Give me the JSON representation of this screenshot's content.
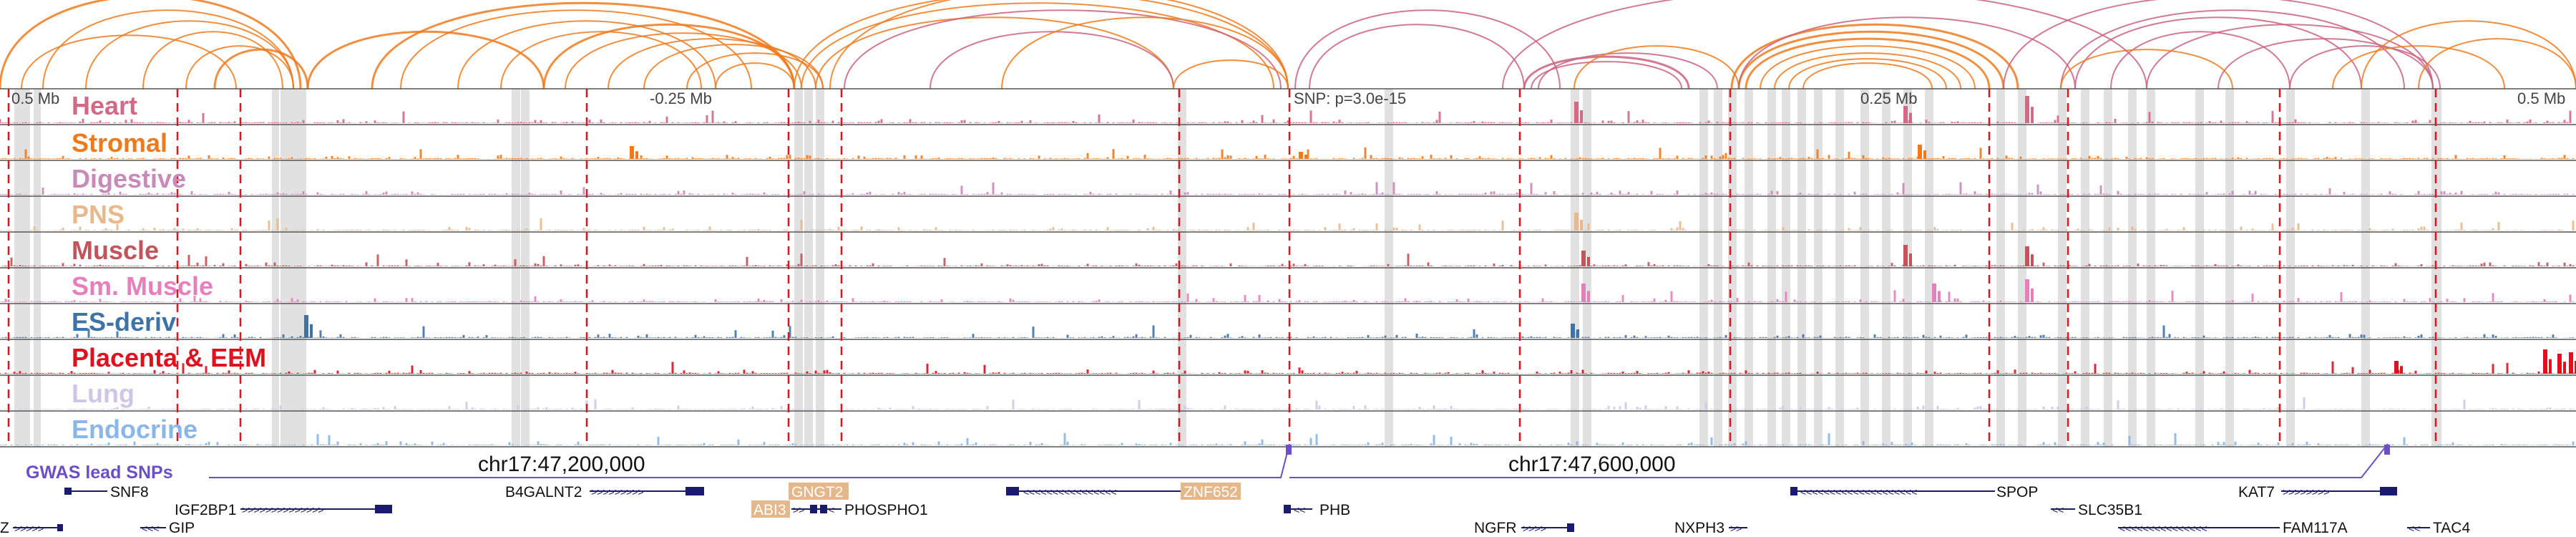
{
  "ruler": {
    "left": "0.5 Mb",
    "mid_left": "-0.25 Mb",
    "snp": "SNP: p=3.0e-15",
    "mid_right": "0.25 Mb",
    "right": "0.5 Mb"
  },
  "coordinates": [
    "chr17:47,200,000",
    "chr17:47,600,000"
  ],
  "gwas_label": "GWAS lead SNPs",
  "tracks": [
    {
      "name": "Heart",
      "color": "#d06a86"
    },
    {
      "name": "Stromal",
      "color": "#ef7a1d"
    },
    {
      "name": "Digestive",
      "color": "#c88ab8"
    },
    {
      "name": "PNS",
      "color": "#e8b98e"
    },
    {
      "name": "Muscle",
      "color": "#c2545c"
    },
    {
      "name": "Sm. Muscle",
      "color": "#e77fbc"
    },
    {
      "name": "ES-deriv",
      "color": "#3e73a8"
    },
    {
      "name": "Placenta & EEM",
      "color": "#e0101e"
    },
    {
      "name": "Lung",
      "color": "#cfc6e6"
    },
    {
      "name": "Endocrine",
      "color": "#8ab6e8"
    }
  ],
  "genes": [
    "SNF8",
    "IGF2BP1",
    "Z",
    "GIP",
    "B4GALNT2",
    "GNGT2",
    "ABI3",
    "PHOSPHO1",
    "ZNF652",
    "PHB",
    "NGFR",
    "NXPH3",
    "SPOP",
    "SLC35B1",
    "FAM117A",
    "KAT7",
    "TAC4"
  ],
  "colors": {
    "arc_orange": "#ef7a1d",
    "arc_pink": "#c9637e",
    "enhancer_dashed": "#e2121e",
    "highlight": "#dcdcdc",
    "gene_model": "#1a1a6e",
    "gwas": "#6a4fc9",
    "label_box": "#e4b88a"
  }
}
